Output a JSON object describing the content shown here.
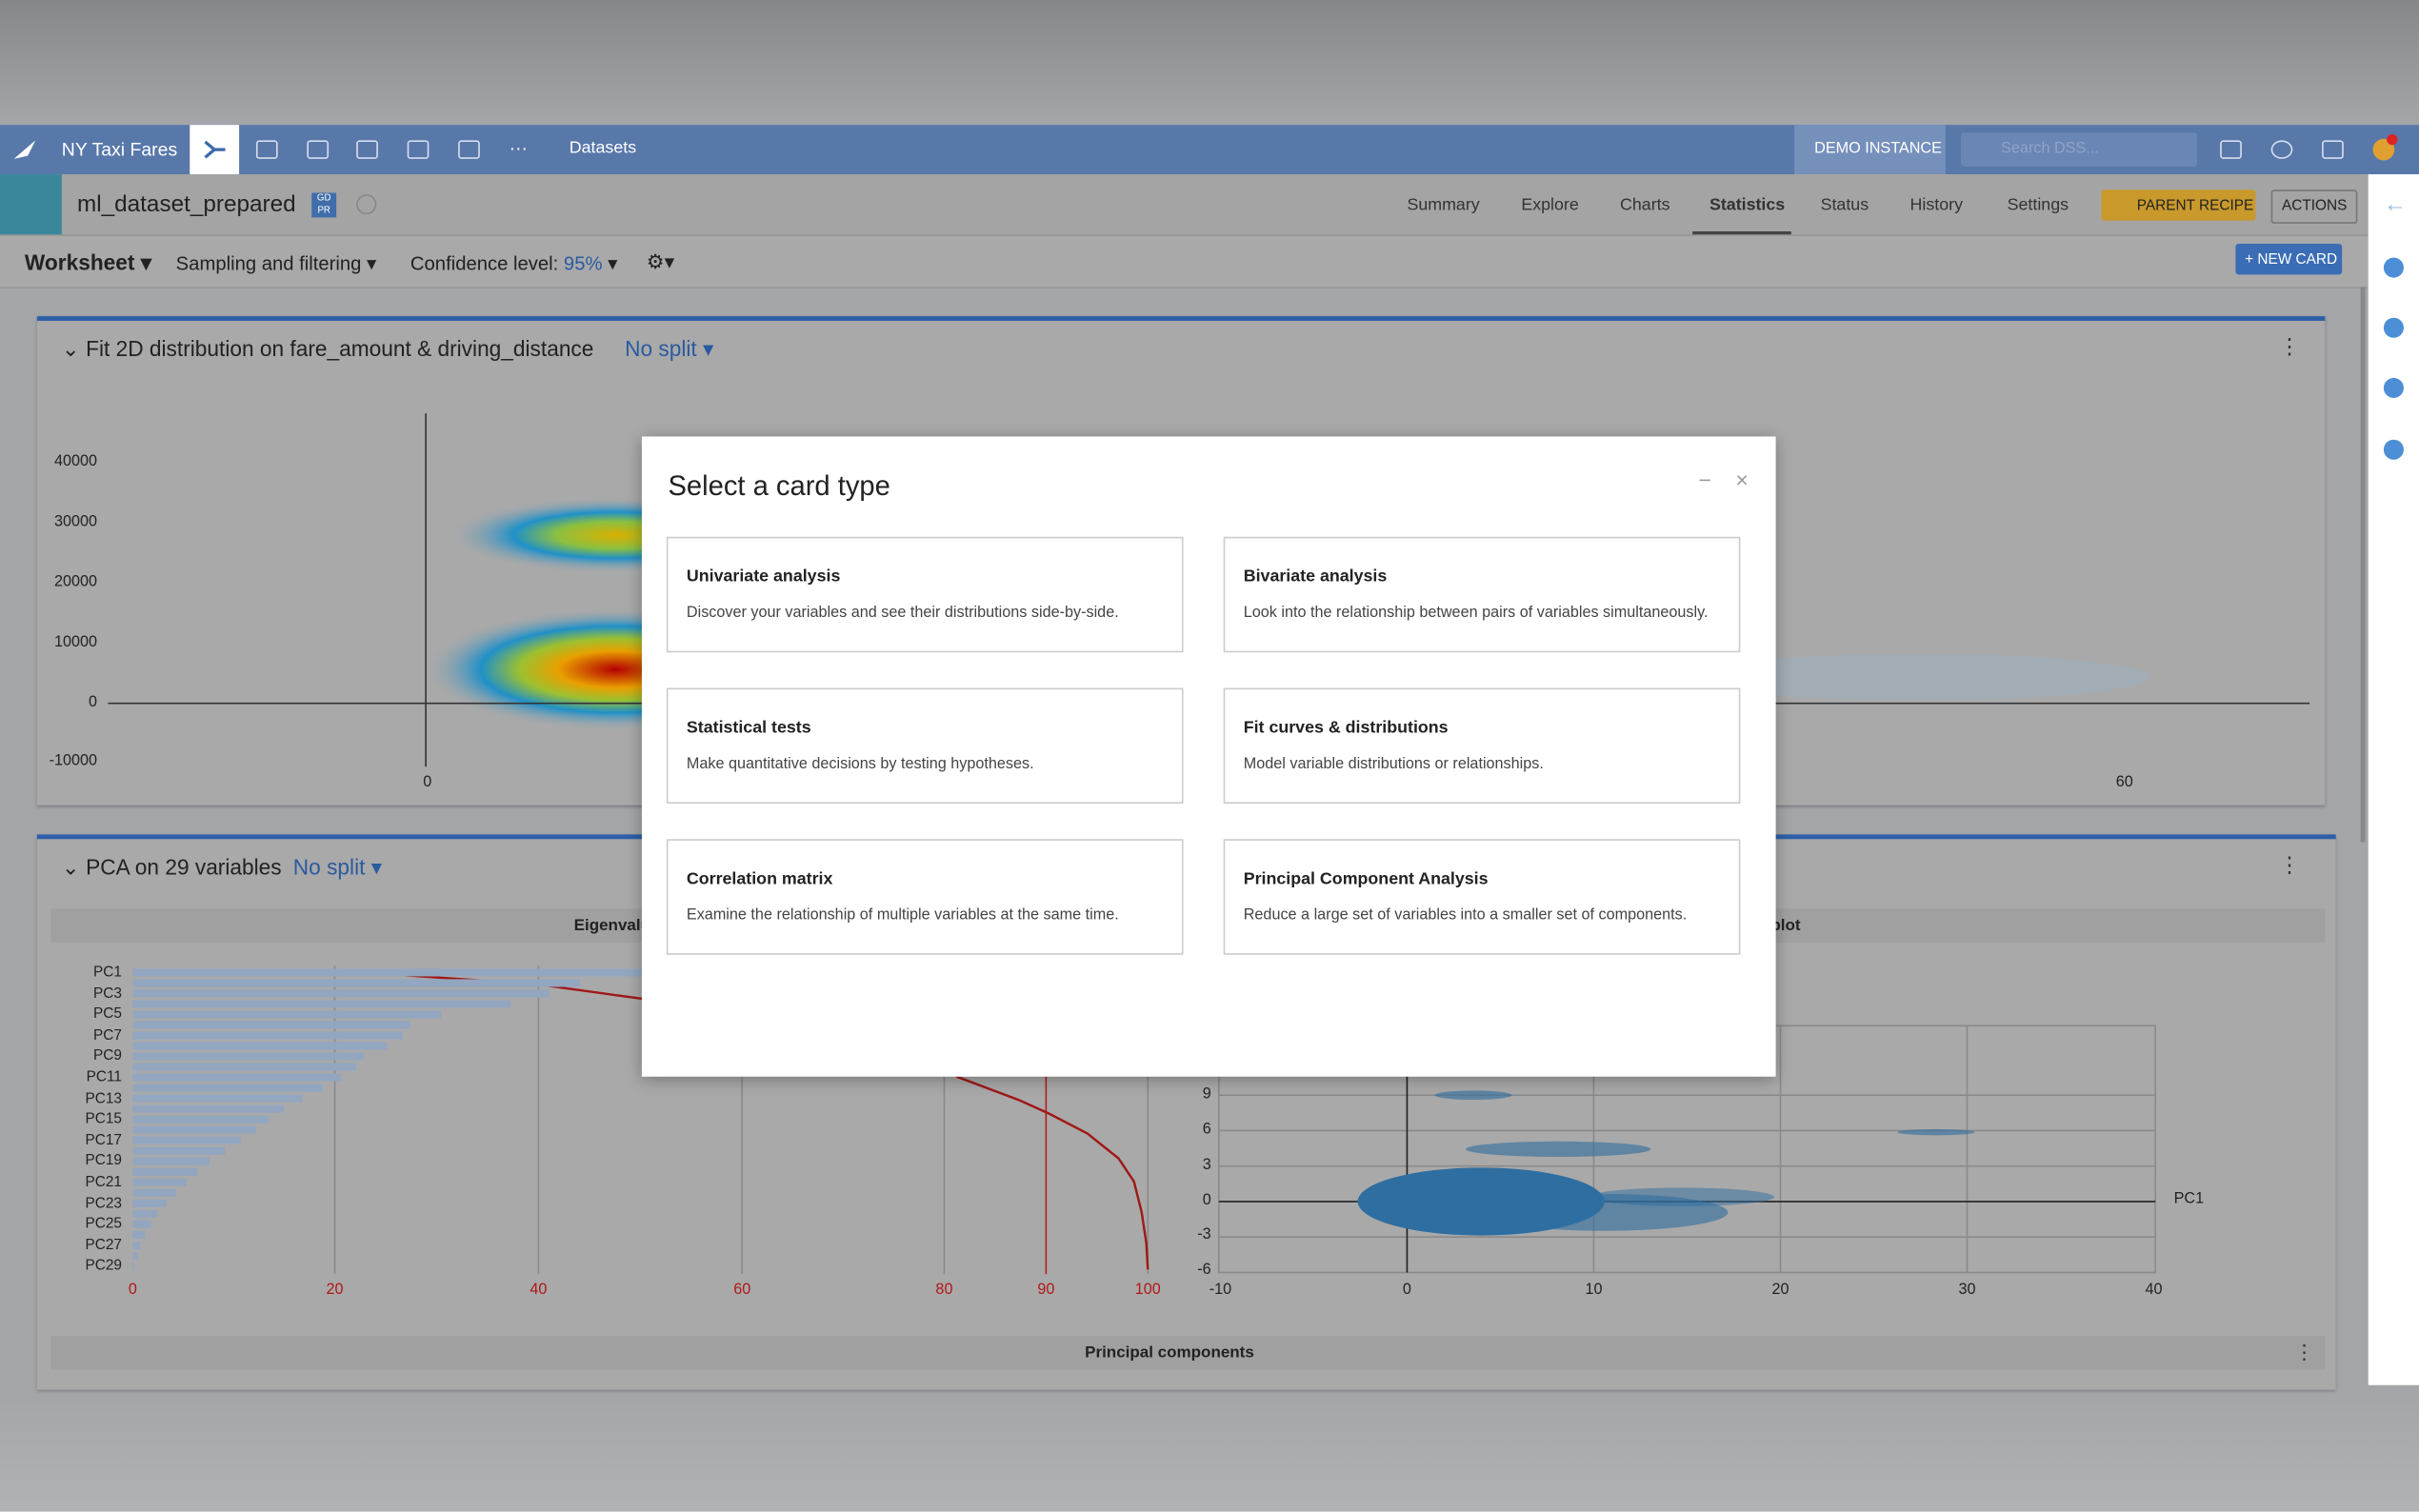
{
  "top_nav": {
    "project": "NY Taxi Fares",
    "section": "Datasets",
    "instance": "DEMO INSTANCE",
    "search_placeholder": "Search DSS..."
  },
  "dataset_header": {
    "name": "ml_dataset_prepared",
    "badge": "GD PR",
    "tabs": [
      "Summary",
      "Explore",
      "Charts",
      "Statistics",
      "Status",
      "History",
      "Settings"
    ],
    "active_tab": "Statistics",
    "parent_recipe": "PARENT RECIPE",
    "actions": "ACTIONS"
  },
  "toolbar": {
    "worksheet": "Worksheet",
    "sampling": "Sampling and filtering",
    "confidence_label": "Confidence level:",
    "confidence_value": "95%",
    "new_card": "+ NEW CARD"
  },
  "fit_card": {
    "title": "Fit 2D distribution on fare_amount & driving_distance",
    "split": "No split",
    "y_ticks": [
      "40000",
      "30000",
      "20000",
      "10000",
      "0",
      "-10000"
    ],
    "x_ticks": [
      "0",
      "60"
    ]
  },
  "pca_card": {
    "title": "PCA on 29 variables",
    "split": "No split",
    "eigen_header": "Eigenvalues",
    "scatter_header": "Scatter plot",
    "eigen_labels": [
      "PC1",
      "PC3",
      "PC5",
      "PC7",
      "PC9",
      "PC11",
      "PC13",
      "PC15",
      "PC17",
      "PC19",
      "PC21",
      "PC23",
      "PC25",
      "PC27",
      "PC29"
    ],
    "eigen_x_ticks": [
      "0",
      "20",
      "40",
      "60",
      "80",
      "90",
      "100"
    ],
    "scatter_y_ticks": [
      "9",
      "6",
      "3",
      "0",
      "-3",
      "-6"
    ],
    "scatter_x_ticks": [
      "-10",
      "0",
      "10",
      "20",
      "30",
      "40"
    ],
    "scatter_x_label": "PC1",
    "footer": "Principal components"
  },
  "modal": {
    "title": "Select a card type",
    "options": [
      {
        "title": "Univariate analysis",
        "description": "Discover your variables and see their distributions side-by-side."
      },
      {
        "title": "Bivariate analysis",
        "description": "Look into the relationship between pairs of variables simultaneously."
      },
      {
        "title": "Statistical tests",
        "description": "Make quantitative decisions by testing hypotheses."
      },
      {
        "title": "Fit curves & distributions",
        "description": "Model variable distributions or relationships."
      },
      {
        "title": "Correlation matrix",
        "description": "Examine the relationship of multiple variables at the same time."
      },
      {
        "title": "Principal Component Analysis",
        "description": "Reduce a large set of variables into a smaller set of components."
      }
    ]
  }
}
